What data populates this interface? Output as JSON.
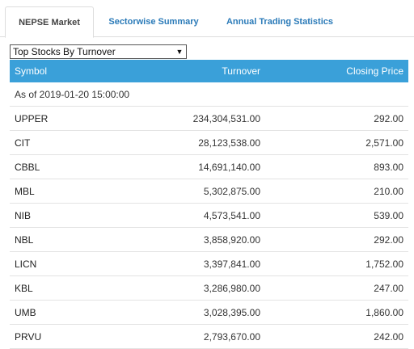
{
  "tabs": [
    {
      "label": "NEPSE Market",
      "active": true
    },
    {
      "label": "Sectorwise Summary",
      "active": false
    },
    {
      "label": "Annual Trading Statistics",
      "active": false
    }
  ],
  "select": {
    "value": "Top Stocks By Turnover",
    "icon": "triangle-down-icon"
  },
  "table": {
    "headers": {
      "symbol": "Symbol",
      "turnover": "Turnover",
      "closing": "Closing Price"
    },
    "as_of": "As of 2019-01-20 15:00:00",
    "rows": [
      {
        "symbol": "UPPER",
        "turnover": "234,304,531.00",
        "closing": "292.00"
      },
      {
        "symbol": "CIT",
        "turnover": "28,123,538.00",
        "closing": "2,571.00"
      },
      {
        "symbol": "CBBL",
        "turnover": "14,691,140.00",
        "closing": "893.00"
      },
      {
        "symbol": "MBL",
        "turnover": "5,302,875.00",
        "closing": "210.00"
      },
      {
        "symbol": "NIB",
        "turnover": "4,573,541.00",
        "closing": "539.00"
      },
      {
        "symbol": "NBL",
        "turnover": "3,858,920.00",
        "closing": "292.00"
      },
      {
        "symbol": "LICN",
        "turnover": "3,397,841.00",
        "closing": "1,752.00"
      },
      {
        "symbol": "KBL",
        "turnover": "3,286,980.00",
        "closing": "247.00"
      },
      {
        "symbol": "UMB",
        "turnover": "3,028,395.00",
        "closing": "1,860.00"
      },
      {
        "symbol": "PRVU",
        "turnover": "2,793,670.00",
        "closing": "242.00"
      }
    ]
  },
  "colors": {
    "header_bg": "#3aa0d9",
    "tab_link": "#2a7ab8"
  }
}
